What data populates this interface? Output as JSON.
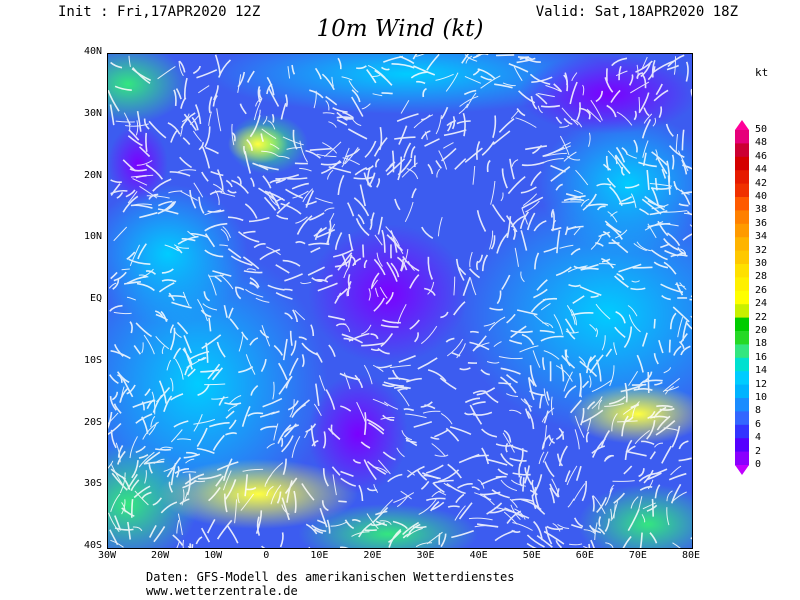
{
  "header": {
    "init": "Init : Fri,17APR2020 12Z",
    "valid": "Valid: Sat,18APR2020 18Z",
    "title": "10m Wind (kt)"
  },
  "map": {
    "lat_ticks": [
      "40N",
      "30N",
      "20N",
      "10N",
      "EQ",
      "10S",
      "20S",
      "30S",
      "40S"
    ],
    "lon_ticks": [
      "30W",
      "20W",
      "10W",
      "0",
      "10E",
      "20E",
      "30E",
      "40E",
      "50E",
      "60E",
      "70E",
      "80E"
    ]
  },
  "legend": {
    "unit": "kt",
    "levels": [
      "50",
      "48",
      "46",
      "44",
      "42",
      "40",
      "38",
      "36",
      "34",
      "32",
      "30",
      "28",
      "26",
      "24",
      "22",
      "20",
      "18",
      "16",
      "14",
      "12",
      "10",
      "8",
      "6",
      "4",
      "2",
      "0"
    ],
    "colors": [
      "#ff0099",
      "#e6007a",
      "#cc0033",
      "#d40000",
      "#e61a00",
      "#f03000",
      "#ff5a00",
      "#ff8000",
      "#ff9a00",
      "#ffb400",
      "#ffc800",
      "#ffe000",
      "#fff000",
      "#ffff00",
      "#c8f000",
      "#00cc00",
      "#26d926",
      "#33e680",
      "#00e0d0",
      "#00ccff",
      "#00b3ff",
      "#1a8cff",
      "#3366ff",
      "#3333ff",
      "#5500ff",
      "#8a00ff",
      "#c000ff"
    ]
  },
  "footer": {
    "line1": "Daten: GFS-Modell des amerikanischen Wetterdienstes",
    "line2": "www.wetterzentrale.de"
  }
}
